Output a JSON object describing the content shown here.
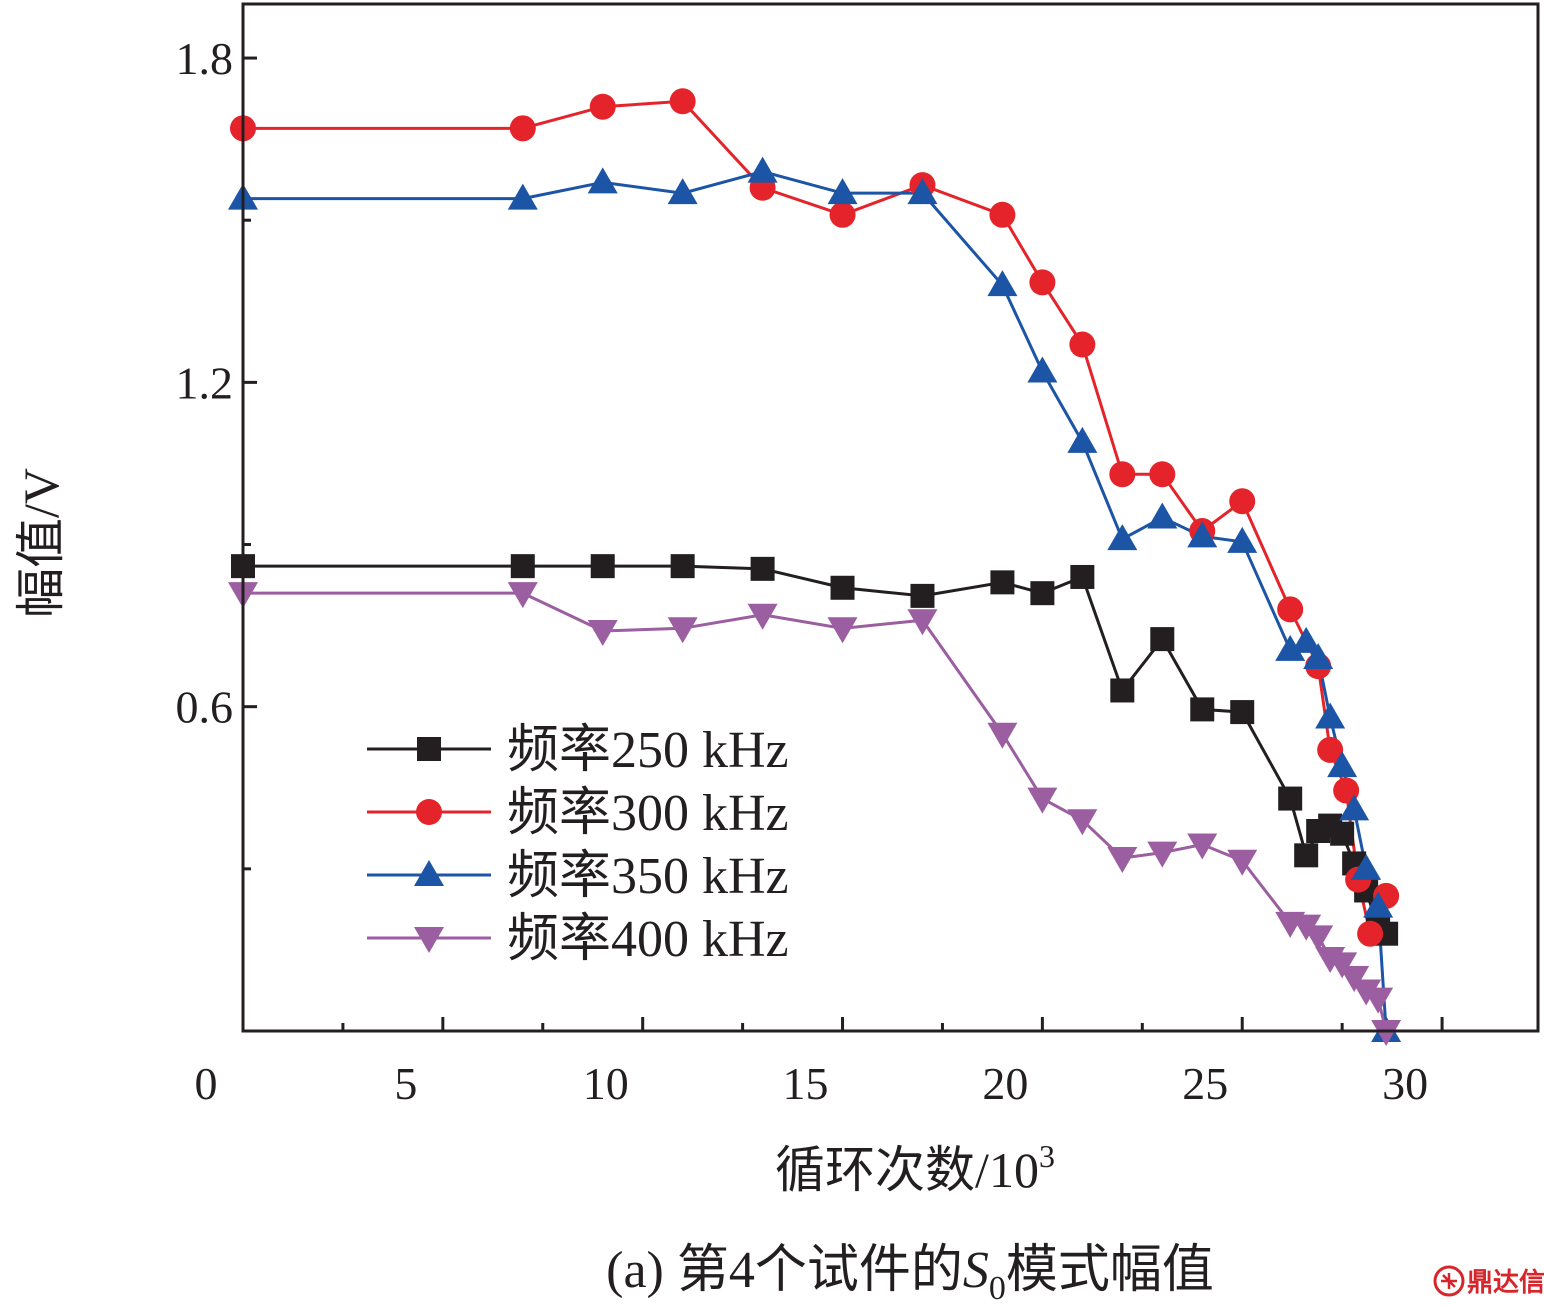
{
  "chart_data": {
    "type": "line",
    "caption": "(a) 第4个试件的S0模式幅值",
    "caption_parts": {
      "prefix": "(a) 第4个试件的",
      "italic": "S",
      "sub": "0",
      "suffix": "模式幅值"
    },
    "xlabel": "循环次数/10³",
    "xlabel_parts": {
      "main": "循环次数/10",
      "sup": "3"
    },
    "ylabel": "幅值/V",
    "xlim": [
      0,
      32.4
    ],
    "ylim": [
      0,
      1.9
    ],
    "xticks": [
      0,
      5,
      10,
      15,
      20,
      25,
      30
    ],
    "xtick_labels": [
      "0",
      "5",
      "10",
      "15",
      "20",
      "25",
      "30"
    ],
    "xminor": [
      2.5,
      7.5,
      12.5,
      17.5,
      22.5,
      27.5,
      32.5
    ],
    "yticks": [
      0.6,
      1.2,
      1.8
    ],
    "ytick_labels": [
      "0.6",
      "1.2",
      "1.8"
    ],
    "legend_position": "lower-left",
    "series": [
      {
        "name": "频率250 kHz",
        "color": "#231f20",
        "marker": "square",
        "x": [
          0,
          7,
          9,
          11,
          13,
          15,
          17,
          19,
          20,
          21,
          22,
          23,
          24,
          25,
          26.2,
          26.6,
          26.9,
          27.2,
          27.5,
          27.8,
          28.1,
          28.4,
          28.6
        ],
        "y": [
          0.86,
          0.86,
          0.86,
          0.86,
          0.855,
          0.82,
          0.805,
          0.83,
          0.81,
          0.84,
          0.63,
          0.725,
          0.595,
          0.59,
          0.43,
          0.325,
          0.37,
          0.38,
          0.365,
          0.31,
          0.26,
          0.19,
          0.18
        ]
      },
      {
        "name": "频率300 kHz",
        "color": "#e4242a",
        "marker": "circle",
        "x": [
          0,
          7,
          9,
          11,
          13,
          15,
          17,
          19,
          20,
          21,
          22,
          23,
          24,
          25,
          26.2,
          26.9,
          27.2,
          27.6,
          27.9,
          28.2,
          28.6
        ],
        "y": [
          1.67,
          1.67,
          1.71,
          1.72,
          1.56,
          1.51,
          1.565,
          1.51,
          1.385,
          1.27,
          1.03,
          1.03,
          0.925,
          0.98,
          0.78,
          0.675,
          0.52,
          0.445,
          0.28,
          0.18,
          0.25
        ]
      },
      {
        "name": "频率350 kHz",
        "color": "#1c55a6",
        "marker": "triangle-up",
        "x": [
          0,
          7,
          9,
          11,
          13,
          15,
          17,
          19,
          20,
          21,
          22,
          23,
          24,
          25,
          26.2,
          26.6,
          26.9,
          27.2,
          27.5,
          27.8,
          28.1,
          28.4,
          28.6
        ],
        "y": [
          1.54,
          1.54,
          1.57,
          1.55,
          1.59,
          1.55,
          1.55,
          1.38,
          1.22,
          1.09,
          0.91,
          0.95,
          0.915,
          0.905,
          0.705,
          0.72,
          0.69,
          0.58,
          0.49,
          0.41,
          0.3,
          0.23,
          0.0
        ]
      },
      {
        "name": "频率400 kHz",
        "color": "#9b5ea0",
        "marker": "triangle-down",
        "x": [
          0,
          7,
          9,
          11,
          13,
          15,
          17,
          19,
          20,
          21,
          22,
          23,
          24,
          25,
          26.2,
          26.6,
          26.9,
          27.2,
          27.5,
          27.8,
          28.1,
          28.4,
          28.6
        ],
        "y": [
          0.81,
          0.81,
          0.74,
          0.745,
          0.77,
          0.745,
          0.76,
          0.55,
          0.43,
          0.39,
          0.32,
          0.33,
          0.345,
          0.315,
          0.2,
          0.195,
          0.175,
          0.135,
          0.125,
          0.1,
          0.075,
          0.06,
          0.0
        ]
      }
    ]
  },
  "watermark": {
    "text": "鼎达信",
    "icon": "seal-icon"
  }
}
